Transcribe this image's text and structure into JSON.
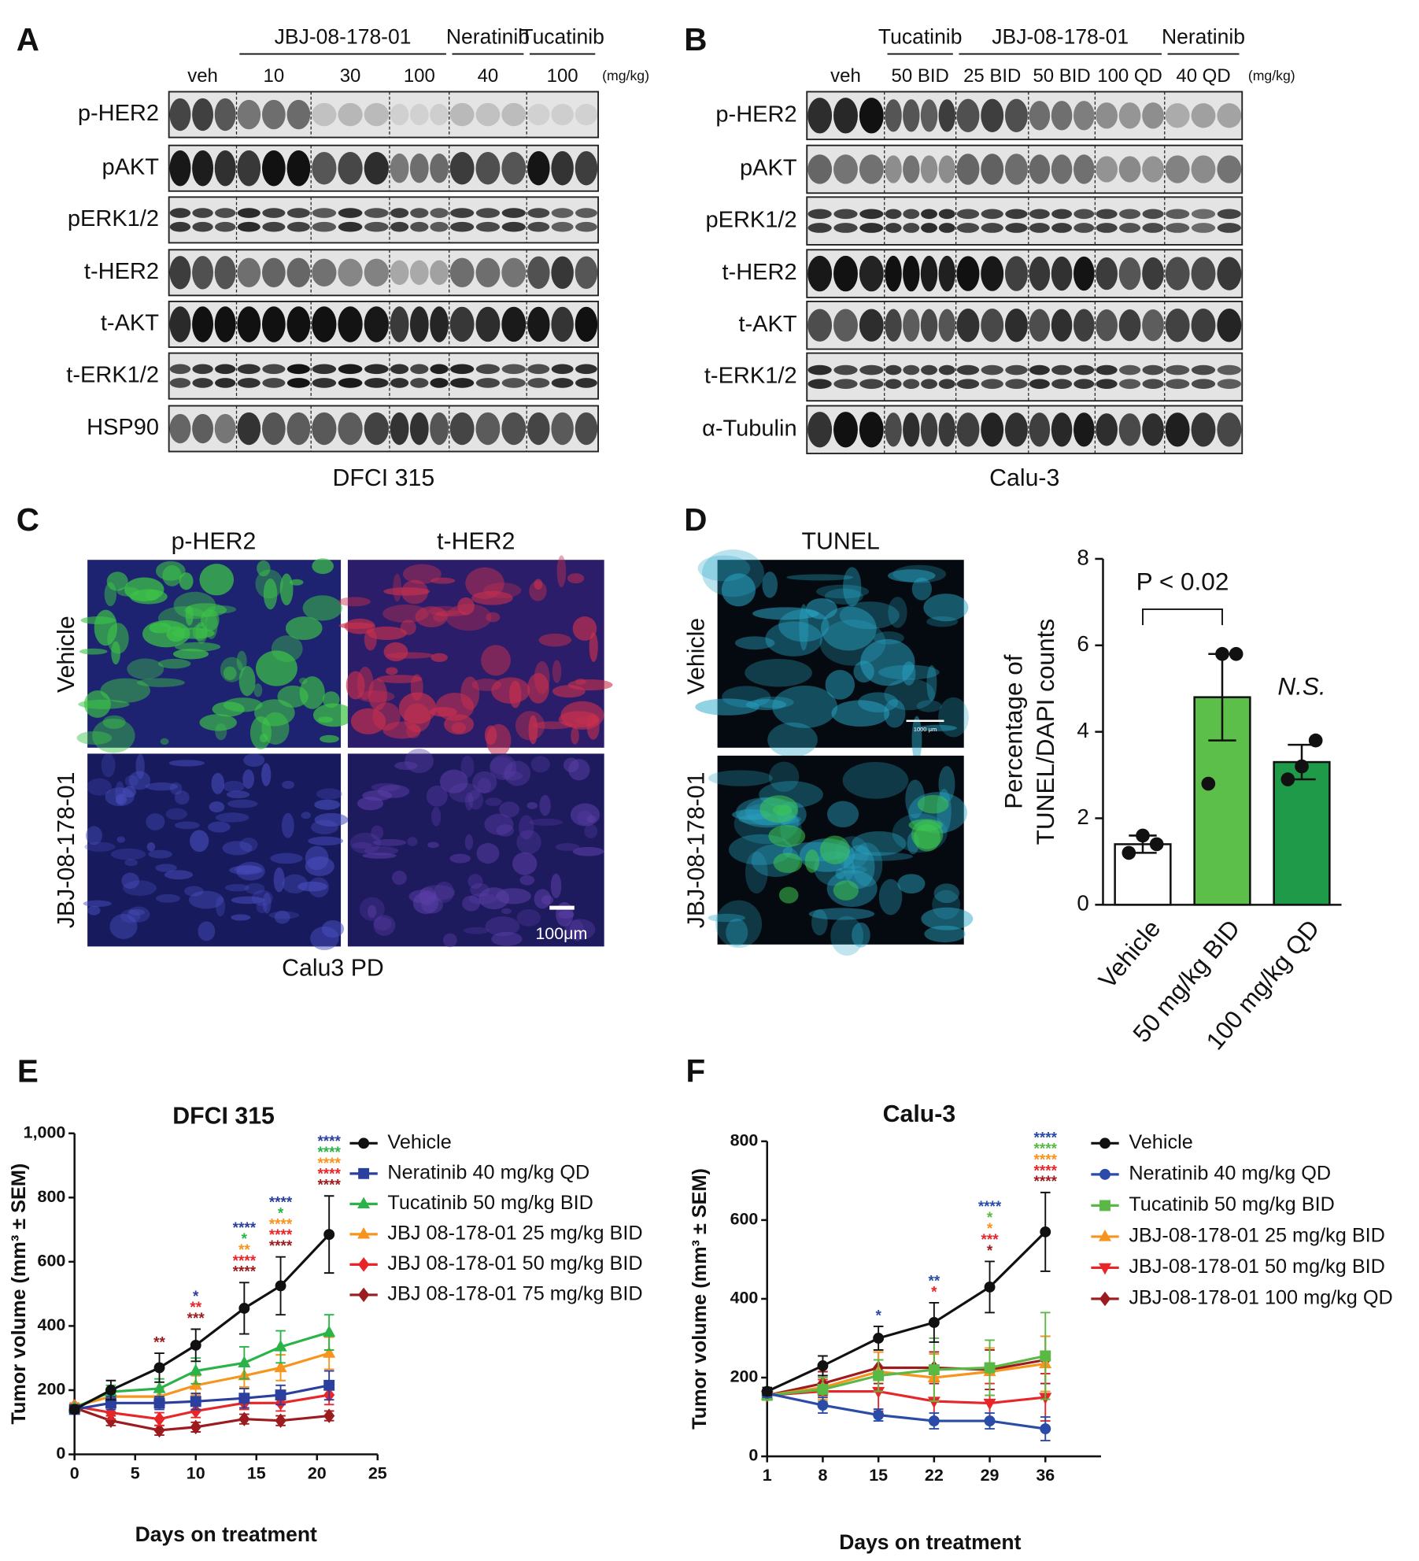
{
  "figure": {
    "panel_labels": [
      "A",
      "B",
      "C",
      "D",
      "E",
      "F"
    ],
    "blot_a": {
      "drug_headers": [
        "JBJ-08-178-01",
        "Neratinib",
        "Tucatinib"
      ],
      "doses": [
        "veh",
        "10",
        "30",
        "100",
        "40",
        "100"
      ],
      "unit": "(mg/kg)",
      "rows": [
        "p-HER2",
        "pAKT",
        "pERK1/2",
        "t-HER2",
        "t-AKT",
        "t-ERK1/2",
        "HSP90"
      ],
      "caption": "DFCI 315"
    },
    "blot_b": {
      "drug_headers": [
        "Tucatinib",
        "JBJ-08-178-01",
        "Neratinib"
      ],
      "doses": [
        "veh",
        "50 BID",
        "25 BID",
        "50 BID",
        "100 QD",
        "40 QD"
      ],
      "unit": "(mg/kg)",
      "rows": [
        "p-HER2",
        "pAKT",
        "pERK1/2",
        "t-HER2",
        "t-AKT",
        "t-ERK1/2",
        "α-Tubulin"
      ],
      "caption": "Calu-3"
    },
    "ihc_c": {
      "columns": [
        "p-HER2",
        "t-HER2"
      ],
      "rows": [
        "Vehicle",
        "JBJ-08-178-01"
      ],
      "scale_bar": "100μm",
      "caption": "Calu3 PD"
    },
    "tunel_d": {
      "title": "TUNEL",
      "rows": [
        "Vehicle",
        "JBJ-08-178-01"
      ],
      "scale_bar": "1000 μm"
    }
  },
  "chart_data": [
    {
      "type": "bar",
      "ylabel": [
        "Percentage of",
        "TUNEL/DAPI counts"
      ],
      "categories": [
        "Vehicle",
        "50 mg/kg BID",
        "100 mg/kg QD"
      ],
      "values": [
        1.4,
        4.8,
        3.3
      ],
      "errors": [
        0.2,
        1.0,
        0.4
      ],
      "points": [
        [
          1.2,
          1.6,
          1.4
        ],
        [
          2.8,
          5.8,
          5.8
        ],
        [
          2.9,
          3.2,
          3.8
        ]
      ],
      "colors": [
        "#ffffff",
        "#5cbf4a",
        "#1f9a48"
      ],
      "ylim": [
        0,
        8
      ],
      "yticks": [
        0,
        2,
        4,
        6,
        8
      ],
      "significance": "P < 0.02",
      "ns_label": "N.S."
    },
    {
      "type": "line",
      "title": "DFCI 315",
      "xlabel": "Days on treatment",
      "ylabel": "Tumor volume (mm³ ± SEM)",
      "x": [
        0,
        3,
        7,
        10,
        14,
        17,
        21
      ],
      "xlim": [
        0,
        25
      ],
      "xticks": [
        0,
        5,
        10,
        15,
        20,
        25
      ],
      "ylim": [
        0,
        1000
      ],
      "yticks": [
        0,
        200,
        400,
        600,
        800,
        {
          "value": 1000,
          "label": "1,000"
        }
      ],
      "series": [
        {
          "name": "Vehicle",
          "color": "#111111",
          "marker": "circle",
          "values": [
            140,
            200,
            270,
            340,
            455,
            525,
            685
          ],
          "errors": [
            10,
            30,
            45,
            50,
            80,
            90,
            120
          ]
        },
        {
          "name": "Neratinib 40 mg/kg QD",
          "color": "#2a3f9e",
          "marker": "square",
          "values": [
            140,
            160,
            160,
            165,
            175,
            185,
            215
          ],
          "errors": [
            10,
            20,
            20,
            25,
            30,
            30,
            45
          ],
          "stars": [
            null,
            null,
            null,
            "*",
            "****",
            "****",
            "****"
          ]
        },
        {
          "name": "Tucatinib 50 mg/kg BID",
          "color": "#2bb34a",
          "marker": "triangle",
          "values": [
            145,
            195,
            205,
            260,
            285,
            335,
            380
          ],
          "errors": [
            10,
            20,
            30,
            40,
            50,
            50,
            55
          ],
          "stars": [
            null,
            null,
            null,
            null,
            "*",
            "*",
            "****"
          ]
        },
        {
          "name": "JBJ 08-178-01 25 mg/kg BID",
          "color": "#f7941d",
          "marker": "triangle",
          "values": [
            150,
            180,
            180,
            215,
            245,
            270,
            315
          ],
          "errors": [
            10,
            20,
            25,
            30,
            35,
            40,
            50
          ],
          "stars": [
            null,
            null,
            null,
            null,
            "**",
            "****",
            "****"
          ]
        },
        {
          "name": "JBJ 08-178-01 50 mg/kg BID",
          "color": "#e8262a",
          "marker": "diamond",
          "values": [
            150,
            130,
            110,
            135,
            160,
            160,
            185
          ],
          "errors": [
            10,
            20,
            20,
            20,
            20,
            25,
            30
          ],
          "stars": [
            null,
            null,
            null,
            "**",
            "****",
            "****",
            "****"
          ]
        },
        {
          "name": "JBJ 08-178-01 75 mg/kg BID",
          "color": "#9c1b1f",
          "marker": "diamond",
          "values": [
            145,
            105,
            75,
            85,
            110,
            105,
            120
          ],
          "errors": [
            10,
            15,
            15,
            15,
            15,
            15,
            15
          ],
          "stars": [
            null,
            null,
            "**",
            "***",
            "****",
            "****",
            "****"
          ]
        }
      ]
    },
    {
      "type": "line",
      "title": "Calu-3",
      "xlabel": "Days on treatment",
      "ylabel": "Tumor volume (mm³ ± SEM)",
      "x": [
        1,
        8,
        15,
        22,
        29,
        36
      ],
      "xlim": [
        1,
        43
      ],
      "xticks": [
        1,
        8,
        15,
        22,
        29,
        36
      ],
      "ylim": [
        0,
        800
      ],
      "yticks": [
        0,
        200,
        400,
        600,
        800
      ],
      "series": [
        {
          "name": "Vehicle",
          "color": "#111111",
          "marker": "circle",
          "values": [
            165,
            230,
            300,
            340,
            430,
            570
          ],
          "errors": [
            10,
            25,
            30,
            50,
            65,
            100
          ]
        },
        {
          "name": "Neratinib 40 mg/kg QD",
          "color": "#2a4ba8",
          "marker": "circle",
          "values": [
            160,
            130,
            105,
            90,
            90,
            70
          ],
          "errors": [
            10,
            20,
            15,
            20,
            20,
            30
          ],
          "stars": [
            null,
            null,
            "*",
            "**",
            "****",
            "****"
          ]
        },
        {
          "name": "Tucatinib 50 mg/kg BID",
          "color": "#5ab944",
          "marker": "square",
          "values": [
            155,
            170,
            205,
            220,
            225,
            255
          ],
          "errors": [
            10,
            30,
            40,
            80,
            70,
            110
          ],
          "stars": [
            null,
            null,
            null,
            null,
            "*",
            "****"
          ]
        },
        {
          "name": "JBJ-08-178-01 25 mg/kg BID",
          "color": "#f7941d",
          "marker": "triangle",
          "values": [
            155,
            175,
            215,
            200,
            215,
            235
          ],
          "errors": [
            10,
            30,
            50,
            60,
            60,
            70
          ],
          "stars": [
            null,
            null,
            null,
            null,
            "*",
            "****"
          ]
        },
        {
          "name": "JBJ-08-178-01 50 mg/kg BID",
          "color": "#e8262a",
          "marker": "triangle-down",
          "values": [
            155,
            165,
            165,
            140,
            135,
            150
          ],
          "errors": [
            10,
            30,
            50,
            50,
            50,
            60
          ],
          "stars": [
            null,
            null,
            null,
            "*",
            "***",
            "****"
          ]
        },
        {
          "name": "JBJ-08-178-01 100 mg/kg QD",
          "color": "#9c1b1f",
          "marker": "diamond",
          "values": [
            155,
            185,
            225,
            225,
            220,
            245
          ],
          "errors": [
            10,
            30,
            40,
            40,
            50,
            60
          ],
          "stars": [
            null,
            null,
            null,
            null,
            "*",
            "****"
          ]
        }
      ]
    }
  ]
}
